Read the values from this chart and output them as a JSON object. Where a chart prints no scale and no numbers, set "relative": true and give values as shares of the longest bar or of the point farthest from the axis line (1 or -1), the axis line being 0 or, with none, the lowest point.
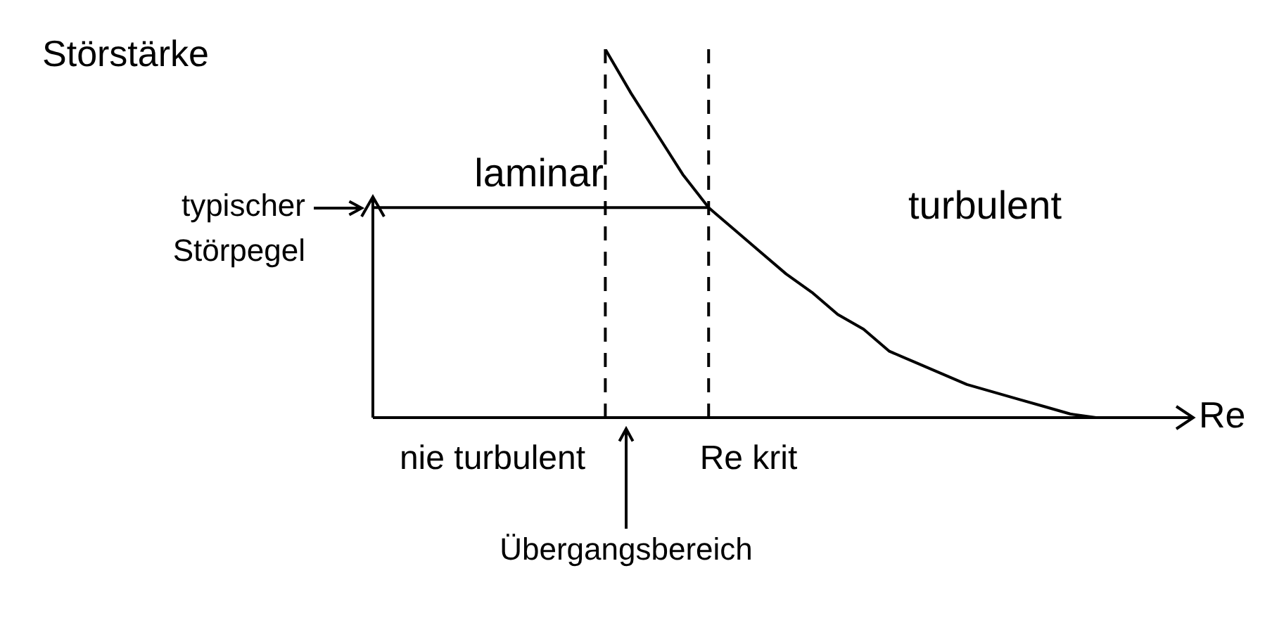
{
  "chart_data": {
    "type": "line",
    "relative": true,
    "xlabel": "Re",
    "ylabel": "Störstärke",
    "legend": false,
    "marker": "none",
    "line_style": "solid",
    "categories": [
      null,
      null,
      null,
      null,
      null,
      null,
      null,
      null,
      null,
      null,
      null,
      null,
      null,
      null,
      null,
      null,
      null,
      null,
      null,
      null,
      null,
      null,
      null,
      null,
      null,
      null,
      null,
      null,
      null,
      null,
      null,
      null
    ],
    "series": [
      {
        "color": "#000000",
        "values": [
          null,
          null,
          null,
          null,
          null,
          null,
          null,
          null,
          null,
          1.0,
          0.88,
          0.77,
          0.66,
          0.57,
          0.51,
          0.45,
          0.39,
          0.34,
          0.28,
          0.24,
          0.18,
          0.15,
          0.12,
          0.09,
          0.07,
          0.05,
          0.03,
          0.01,
          0,
          null,
          null,
          null
        ]
      },
      {
        "color": "#000000",
        "values": [
          0.57,
          0.57,
          0.57,
          0.57,
          0.57,
          0.57,
          0.57,
          0.57,
          0.57,
          0.57,
          0.57,
          0.57,
          0.57,
          0.57,
          null,
          null,
          null,
          null,
          null,
          null,
          null,
          null,
          null,
          null,
          null,
          null,
          null,
          null,
          null,
          null,
          null,
          null
        ]
      }
    ],
    "annotations": [
      "laminar",
      "turbulent",
      "typischer Störpegel",
      "nie turbulent",
      "Übergangsbereich",
      "Re krit"
    ]
  }
}
